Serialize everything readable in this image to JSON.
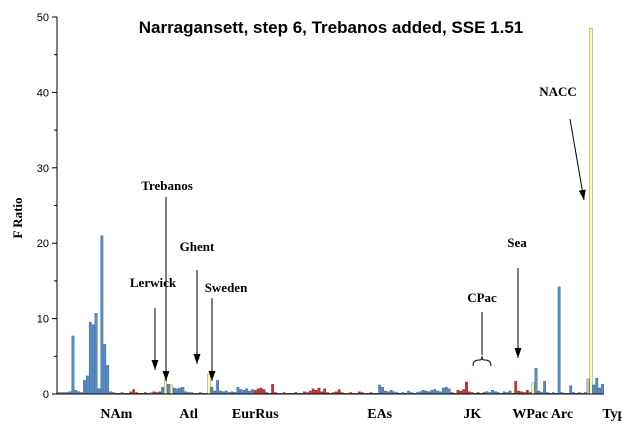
{
  "chart_data": {
    "type": "bar",
    "title": "Narragansett, step 6, Trebanos added, SSE 1.51",
    "xlabel": "",
    "ylabel": "F Ratio",
    "ylim": [
      0,
      50
    ],
    "yticks": [
      0,
      10,
      20,
      30,
      40,
      50
    ],
    "grid": false,
    "legend": "none",
    "colors": {
      "blue": "#4a90d9",
      "red": "#d62b2b",
      "yellow": "#ffff99",
      "gray": "#c0c0c0"
    },
    "groups": [
      "NAm",
      "Atl",
      "EurRus",
      "EAs",
      "JK",
      "WPac",
      "Arc",
      "Type"
    ],
    "annotations": [
      {
        "text": "Trebanos",
        "target_bar": 39
      },
      {
        "text": "Ghent",
        "target_bar": 52
      },
      {
        "text": "Lerwick",
        "target_bar": 36
      },
      {
        "text": "Sweden",
        "target_bar": 55
      },
      {
        "text": "CPac",
        "target_bar": 162
      },
      {
        "text": "Sea",
        "target_bar": 177
      },
      {
        "text": "NACC",
        "target_bar": 197
      }
    ],
    "bars": [
      {
        "v": 0.2,
        "c": "blue"
      },
      {
        "v": 0.2,
        "c": "blue"
      },
      {
        "v": 0.2,
        "c": "blue"
      },
      {
        "v": 0.2,
        "c": "blue"
      },
      {
        "v": 0.3,
        "c": "blue"
      },
      {
        "v": 7.7,
        "c": "blue"
      },
      {
        "v": 0.5,
        "c": "blue"
      },
      {
        "v": 0.3,
        "c": "blue"
      },
      {
        "v": 0.2,
        "c": "blue"
      },
      {
        "v": 1.8,
        "c": "blue"
      },
      {
        "v": 2.4,
        "c": "blue"
      },
      {
        "v": 9.5,
        "c": "blue"
      },
      {
        "v": 9.2,
        "c": "blue"
      },
      {
        "v": 10.7,
        "c": "blue"
      },
      {
        "v": 0.7,
        "c": "blue"
      },
      {
        "v": 21.0,
        "c": "blue"
      },
      {
        "v": 6.6,
        "c": "blue"
      },
      {
        "v": 3.8,
        "c": "blue"
      },
      {
        "v": 0.3,
        "c": "blue"
      },
      {
        "v": 0.2,
        "c": "blue"
      },
      {
        "v": 0.1,
        "c": "blue"
      },
      {
        "v": 0.1,
        "c": "blue"
      },
      {
        "v": 0.2,
        "c": "blue"
      },
      {
        "v": 0.1,
        "c": "red"
      },
      {
        "v": 0.1,
        "c": "red"
      },
      {
        "v": 0.3,
        "c": "red"
      },
      {
        "v": 0.6,
        "c": "red"
      },
      {
        "v": 0.2,
        "c": "red"
      },
      {
        "v": 0.1,
        "c": "red"
      },
      {
        "v": 0.1,
        "c": "red"
      },
      {
        "v": 0.2,
        "c": "red"
      },
      {
        "v": 0.1,
        "c": "red"
      },
      {
        "v": 0.2,
        "c": "gray"
      },
      {
        "v": 0.3,
        "c": "red"
      },
      {
        "v": 0.2,
        "c": "red"
      },
      {
        "v": 0.3,
        "c": "red"
      },
      {
        "v": 0.9,
        "c": "blue"
      },
      {
        "v": 2.0,
        "c": "yellow"
      },
      {
        "v": 1.3,
        "c": "blue"
      },
      {
        "v": 1.2,
        "c": "yellow"
      },
      {
        "v": 0.8,
        "c": "blue"
      },
      {
        "v": 0.7,
        "c": "blue"
      },
      {
        "v": 0.8,
        "c": "blue"
      },
      {
        "v": 0.9,
        "c": "blue"
      },
      {
        "v": 0.3,
        "c": "blue"
      },
      {
        "v": 0.2,
        "c": "blue"
      },
      {
        "v": 0.2,
        "c": "blue"
      },
      {
        "v": 0.1,
        "c": "blue"
      },
      {
        "v": 0.1,
        "c": "blue"
      },
      {
        "v": 0.2,
        "c": "blue"
      },
      {
        "v": 0.1,
        "c": "blue"
      },
      {
        "v": 0.1,
        "c": "blue"
      },
      {
        "v": 2.6,
        "c": "yellow"
      },
      {
        "v": 0.9,
        "c": "blue"
      },
      {
        "v": 0.4,
        "c": "blue"
      },
      {
        "v": 1.8,
        "c": "blue"
      },
      {
        "v": 0.4,
        "c": "blue"
      },
      {
        "v": 0.3,
        "c": "blue"
      },
      {
        "v": 0.4,
        "c": "blue"
      },
      {
        "v": 0.2,
        "c": "blue"
      },
      {
        "v": 0.3,
        "c": "blue"
      },
      {
        "v": 0.2,
        "c": "blue"
      },
      {
        "v": 0.9,
        "c": "blue"
      },
      {
        "v": 0.6,
        "c": "blue"
      },
      {
        "v": 0.5,
        "c": "blue"
      },
      {
        "v": 0.7,
        "c": "blue"
      },
      {
        "v": 0.4,
        "c": "blue"
      },
      {
        "v": 0.6,
        "c": "blue"
      },
      {
        "v": 0.5,
        "c": "red"
      },
      {
        "v": 0.7,
        "c": "red"
      },
      {
        "v": 0.8,
        "c": "red"
      },
      {
        "v": 0.6,
        "c": "red"
      },
      {
        "v": 0.2,
        "c": "red"
      },
      {
        "v": 0.1,
        "c": "red"
      },
      {
        "v": 1.3,
        "c": "red"
      },
      {
        "v": 0.2,
        "c": "red"
      },
      {
        "v": 0.1,
        "c": "red"
      },
      {
        "v": 0.1,
        "c": "red"
      },
      {
        "v": 0.2,
        "c": "red"
      },
      {
        "v": 0.1,
        "c": "red"
      },
      {
        "v": 0.1,
        "c": "red"
      },
      {
        "v": 0.1,
        "c": "red"
      },
      {
        "v": 0.2,
        "c": "red"
      },
      {
        "v": 0.1,
        "c": "red"
      },
      {
        "v": 0.1,
        "c": "red"
      },
      {
        "v": 0.3,
        "c": "red"
      },
      {
        "v": 0.2,
        "c": "red"
      },
      {
        "v": 0.4,
        "c": "red"
      },
      {
        "v": 0.7,
        "c": "red"
      },
      {
        "v": 0.5,
        "c": "red"
      },
      {
        "v": 0.8,
        "c": "red"
      },
      {
        "v": 0.3,
        "c": "red"
      },
      {
        "v": 0.7,
        "c": "red"
      },
      {
        "v": 0.2,
        "c": "red"
      },
      {
        "v": 0.1,
        "c": "red"
      },
      {
        "v": 0.2,
        "c": "red"
      },
      {
        "v": 0.3,
        "c": "red"
      },
      {
        "v": 0.6,
        "c": "red"
      },
      {
        "v": 0.2,
        "c": "red"
      },
      {
        "v": 0.1,
        "c": "red"
      },
      {
        "v": 0.1,
        "c": "red"
      },
      {
        "v": 0.2,
        "c": "red"
      },
      {
        "v": 0.1,
        "c": "red"
      },
      {
        "v": 0.1,
        "c": "red"
      },
      {
        "v": 0.3,
        "c": "red"
      },
      {
        "v": 0.2,
        "c": "red"
      },
      {
        "v": 0.1,
        "c": "red"
      },
      {
        "v": 0.1,
        "c": "red"
      },
      {
        "v": 0.2,
        "c": "red"
      },
      {
        "v": 0.1,
        "c": "red"
      },
      {
        "v": 0.1,
        "c": "red"
      },
      {
        "v": 1.2,
        "c": "blue"
      },
      {
        "v": 0.9,
        "c": "blue"
      },
      {
        "v": 0.4,
        "c": "blue"
      },
      {
        "v": 0.3,
        "c": "blue"
      },
      {
        "v": 0.5,
        "c": "blue"
      },
      {
        "v": 0.3,
        "c": "blue"
      },
      {
        "v": 0.2,
        "c": "blue"
      },
      {
        "v": 0.1,
        "c": "blue"
      },
      {
        "v": 0.2,
        "c": "blue"
      },
      {
        "v": 0.1,
        "c": "blue"
      },
      {
        "v": 0.4,
        "c": "blue"
      },
      {
        "v": 0.2,
        "c": "blue"
      },
      {
        "v": 0.1,
        "c": "blue"
      },
      {
        "v": 0.2,
        "c": "blue"
      },
      {
        "v": 0.3,
        "c": "blue"
      },
      {
        "v": 0.5,
        "c": "blue"
      },
      {
        "v": 0.4,
        "c": "blue"
      },
      {
        "v": 0.3,
        "c": "blue"
      },
      {
        "v": 0.5,
        "c": "blue"
      },
      {
        "v": 0.6,
        "c": "blue"
      },
      {
        "v": 0.4,
        "c": "blue"
      },
      {
        "v": 0.3,
        "c": "blue"
      },
      {
        "v": 0.8,
        "c": "blue"
      },
      {
        "v": 0.9,
        "c": "blue"
      },
      {
        "v": 0.7,
        "c": "blue"
      },
      {
        "v": 0.2,
        "c": "red"
      },
      {
        "v": 0.1,
        "c": "red"
      },
      {
        "v": 0.5,
        "c": "red"
      },
      {
        "v": 0.4,
        "c": "red"
      },
      {
        "v": 0.6,
        "c": "red"
      },
      {
        "v": 1.6,
        "c": "red"
      },
      {
        "v": 0.3,
        "c": "red"
      },
      {
        "v": 0.2,
        "c": "red"
      },
      {
        "v": 0.1,
        "c": "red"
      },
      {
        "v": 0.2,
        "c": "red"
      },
      {
        "v": 0.1,
        "c": "red"
      },
      {
        "v": 0.2,
        "c": "red"
      },
      {
        "v": 0.3,
        "c": "blue"
      },
      {
        "v": 0.2,
        "c": "blue"
      },
      {
        "v": 0.5,
        "c": "blue"
      },
      {
        "v": 0.3,
        "c": "blue"
      },
      {
        "v": 0.2,
        "c": "blue"
      },
      {
        "v": 0.1,
        "c": "blue"
      },
      {
        "v": 0.3,
        "c": "blue"
      },
      {
        "v": 0.2,
        "c": "blue"
      },
      {
        "v": 0.4,
        "c": "blue"
      },
      {
        "v": 0.1,
        "c": "red"
      },
      {
        "v": 1.7,
        "c": "red"
      },
      {
        "v": 0.4,
        "c": "red"
      },
      {
        "v": 0.3,
        "c": "red"
      },
      {
        "v": 0.2,
        "c": "red"
      },
      {
        "v": 0.5,
        "c": "red"
      },
      {
        "v": 0.2,
        "c": "red"
      },
      {
        "v": 1.5,
        "c": "yellow"
      },
      {
        "v": 3.4,
        "c": "blue"
      },
      {
        "v": 0.4,
        "c": "blue"
      },
      {
        "v": 0.2,
        "c": "blue"
      },
      {
        "v": 1.7,
        "c": "blue"
      },
      {
        "v": 0.2,
        "c": "blue"
      },
      {
        "v": 0.1,
        "c": "blue"
      },
      {
        "v": 0.2,
        "c": "blue"
      },
      {
        "v": 0.1,
        "c": "blue"
      },
      {
        "v": 14.2,
        "c": "blue"
      },
      {
        "v": 0.2,
        "c": "blue"
      },
      {
        "v": 0.1,
        "c": "blue"
      },
      {
        "v": 0.1,
        "c": "blue"
      },
      {
        "v": 1.1,
        "c": "blue"
      },
      {
        "v": 0.2,
        "c": "blue"
      },
      {
        "v": 0.1,
        "c": "blue"
      },
      {
        "v": 0.2,
        "c": "blue"
      },
      {
        "v": 0.1,
        "c": "blue"
      },
      {
        "v": 0.2,
        "c": "blue"
      },
      {
        "v": 2.0,
        "c": "gray"
      },
      {
        "v": 48.5,
        "c": "yellow"
      },
      {
        "v": 1.2,
        "c": "blue"
      },
      {
        "v": 2.1,
        "c": "blue"
      },
      {
        "v": 0.8,
        "c": "blue"
      },
      {
        "v": 1.3,
        "c": "blue"
      }
    ]
  }
}
